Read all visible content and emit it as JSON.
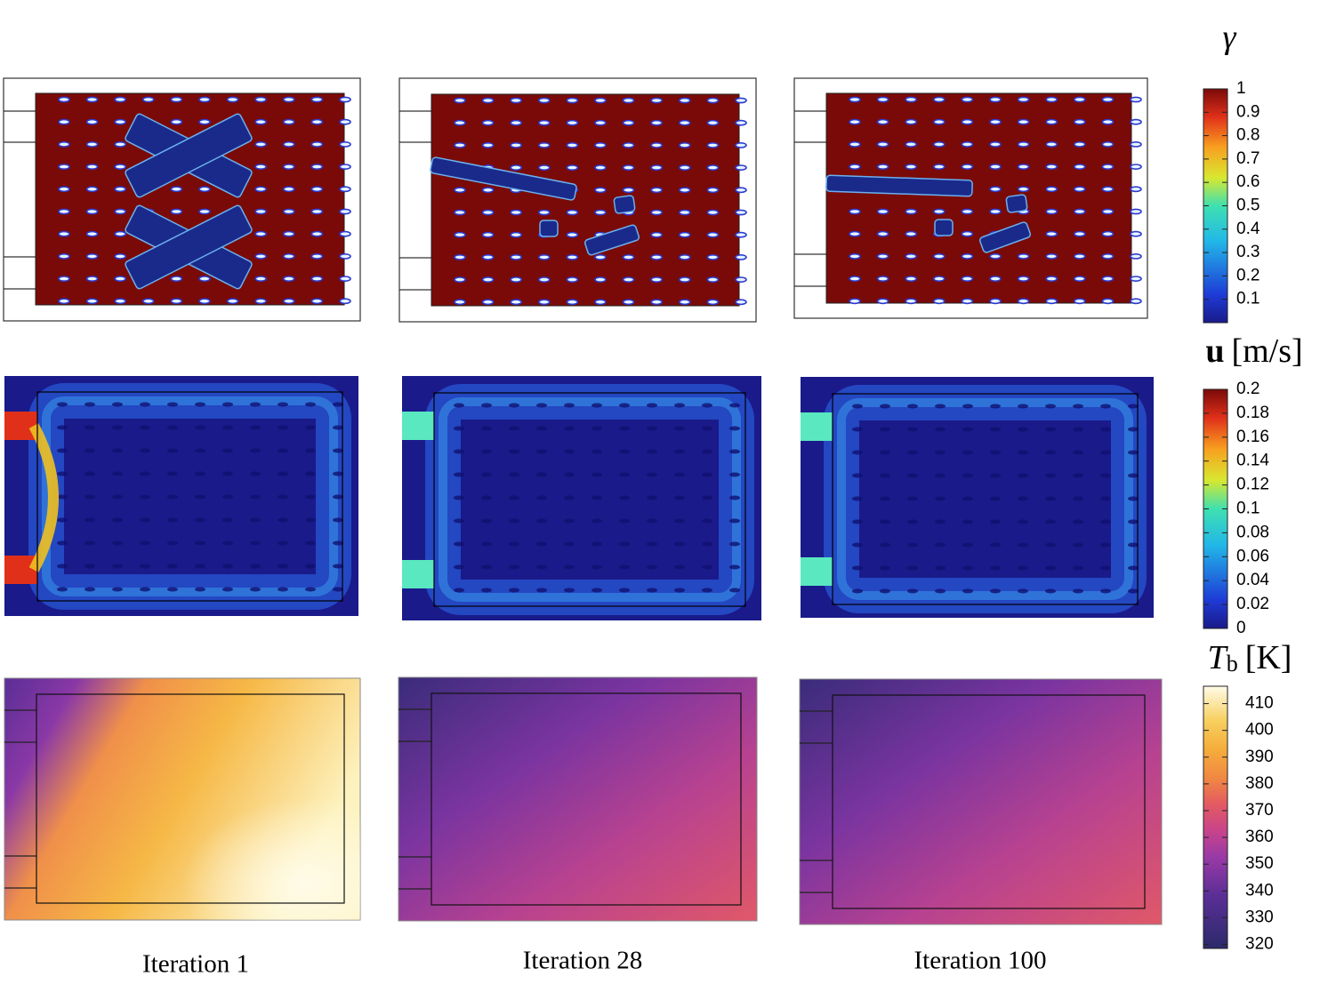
{
  "columns": [
    "Iteration 1",
    "Iteration 28",
    "Iteration 100"
  ],
  "colorbars": [
    {
      "title": {
        "symbol": "γ"
      },
      "range": [
        0,
        1
      ],
      "ticks": [
        1,
        0.9,
        0.8,
        0.7,
        0.6,
        0.5,
        0.4,
        0.3,
        0.2,
        0.1
      ]
    },
    {
      "title": {
        "symbol": "u",
        "unit": "[m/s]"
      },
      "range": [
        0,
        0.2
      ],
      "ticks": [
        0.2,
        0.18,
        0.16,
        0.14,
        0.12,
        0.1,
        0.08,
        0.06,
        0.04,
        0.02,
        0
      ]
    },
    {
      "title": {
        "symbol": "T",
        "subscript": "b",
        "unit": "[K]"
      },
      "range": [
        318.5,
        416.5
      ],
      "ticks": [
        410,
        400,
        390,
        380,
        370,
        360,
        350,
        340,
        330,
        320
      ]
    }
  ]
}
